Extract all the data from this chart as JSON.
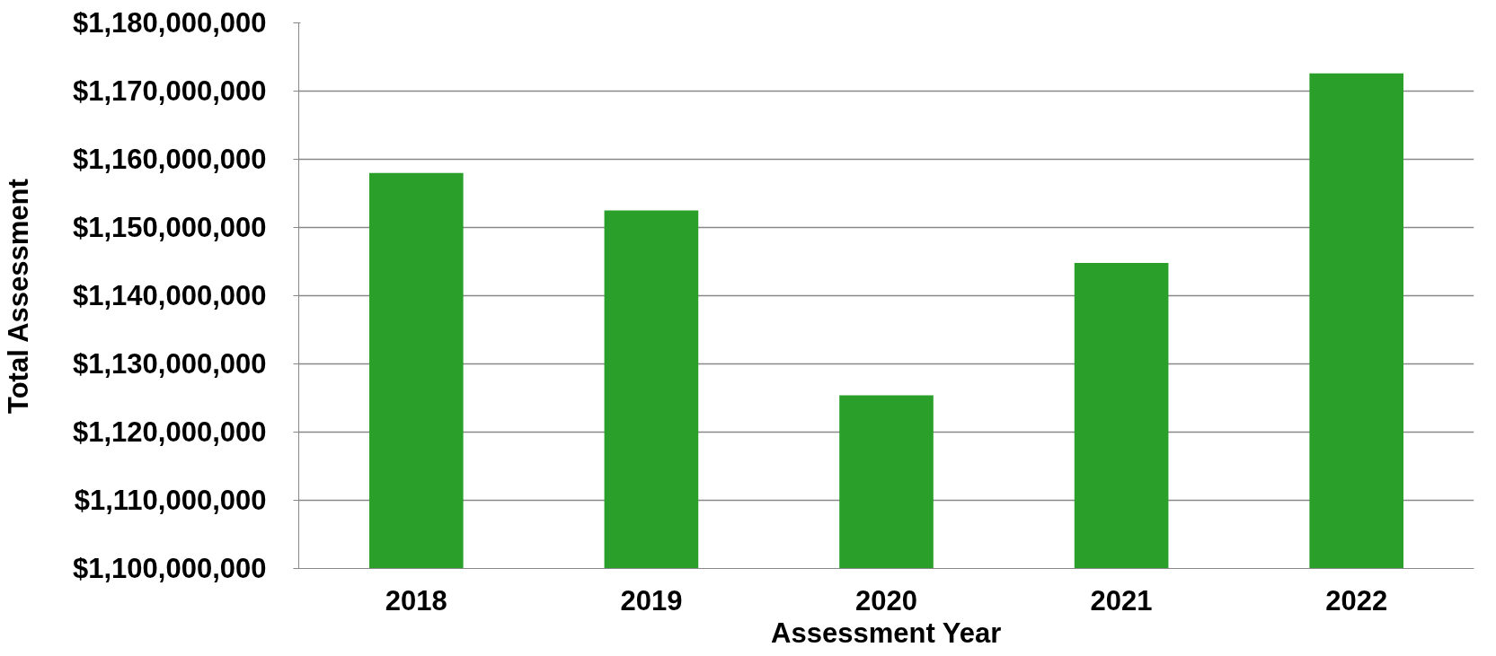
{
  "chart_data": {
    "type": "bar",
    "xlabel": "Assessment Year",
    "ylabel": "Total Assessment",
    "categories": [
      "2018",
      "2019",
      "2020",
      "2021",
      "2022"
    ],
    "values": [
      1158000000,
      1152500000,
      1125400000,
      1144800000,
      1172600000
    ],
    "color": "#2a9f2a",
    "ylim": [
      1100000000,
      1180000000
    ],
    "yticks": [
      {
        "value": 1100000000,
        "label": "$1,100,000,000"
      },
      {
        "value": 1110000000,
        "label": "$1,110,000,000"
      },
      {
        "value": 1120000000,
        "label": "$1,120,000,000"
      },
      {
        "value": 1130000000,
        "label": "$1,130,000,000"
      },
      {
        "value": 1140000000,
        "label": "$1,140,000,000"
      },
      {
        "value": 1150000000,
        "label": "$1,150,000,000"
      },
      {
        "value": 1160000000,
        "label": "$1,160,000,000"
      },
      {
        "value": 1170000000,
        "label": "$1,170,000,000"
      },
      {
        "value": 1180000000,
        "label": "$1,180,000,000"
      }
    ],
    "grid": "y"
  }
}
